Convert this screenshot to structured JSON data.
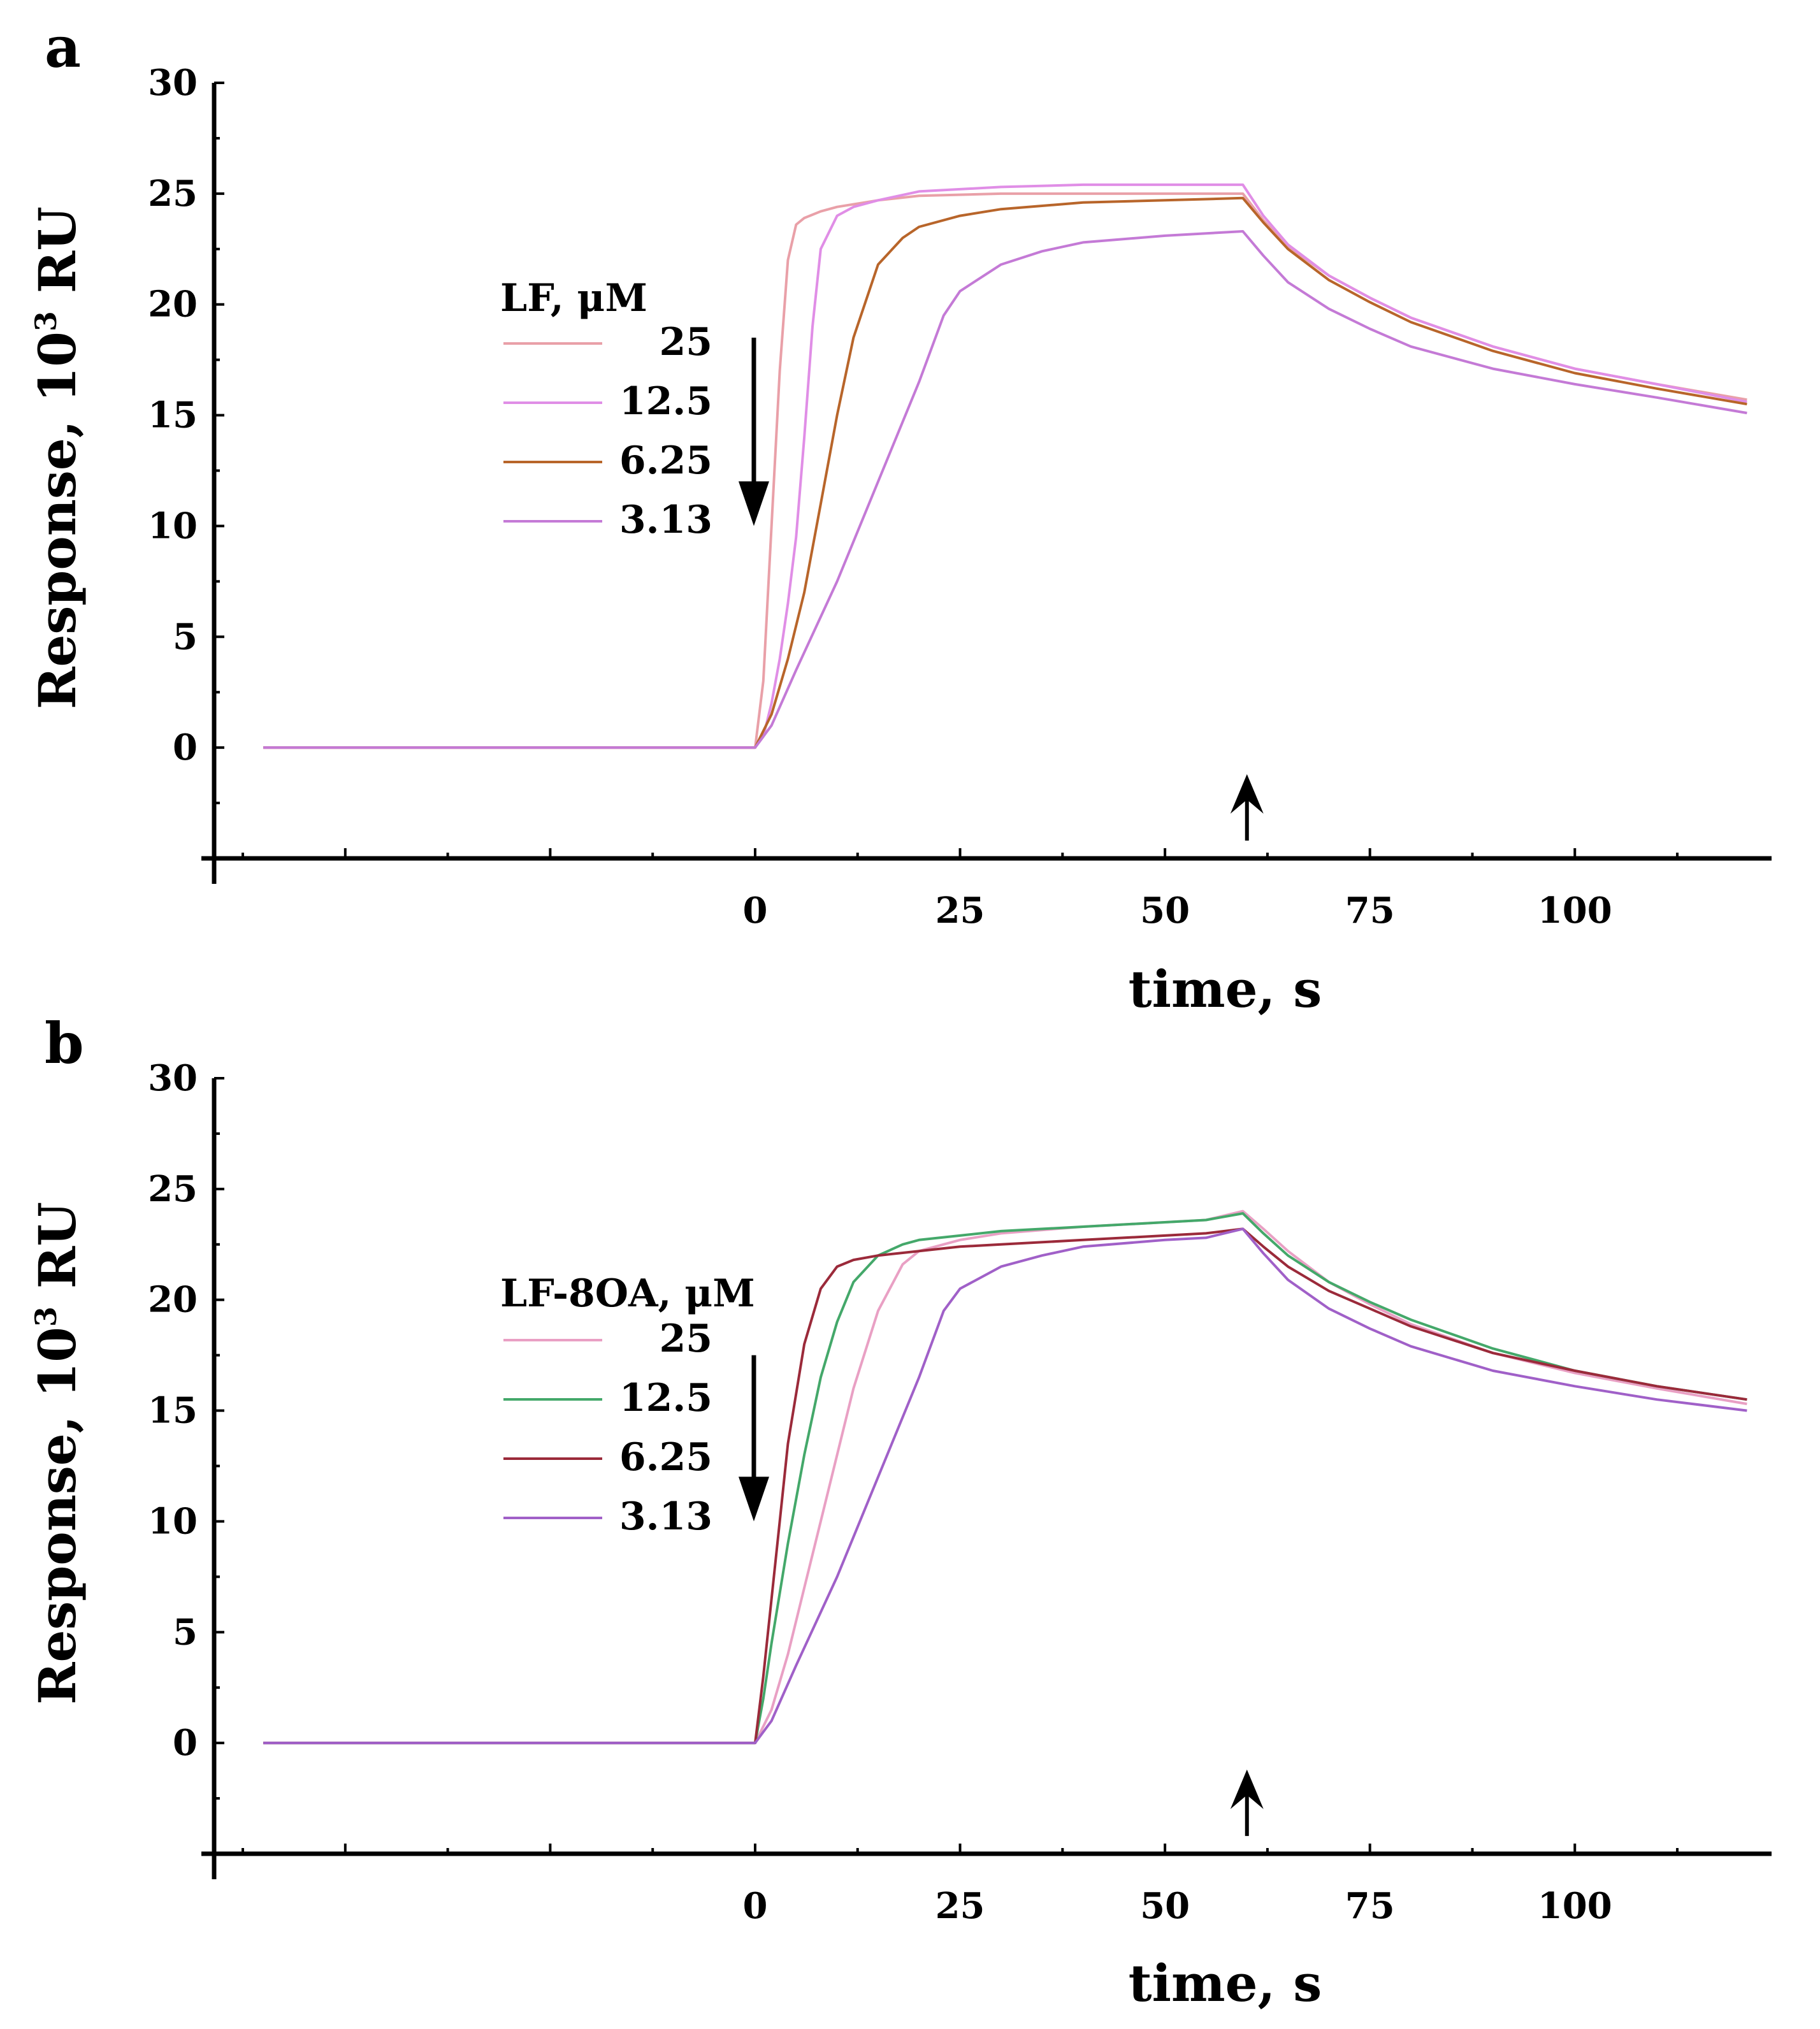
{
  "chart_data": [
    {
      "type": "line",
      "panel_label": "a",
      "xlabel": "time, s",
      "ylabel": "Response, 10",
      "ylabel_superscript": "3",
      "ylabel_suffix": " RU",
      "xlim": [
        -66,
        124
      ],
      "ylim": [
        -5,
        30
      ],
      "xticks": [
        "0",
        "25",
        "50",
        "75",
        "100"
      ],
      "xtick_values": [
        0,
        25,
        50,
        75,
        100
      ],
      "yticks": [
        "0",
        "5",
        "10",
        "15",
        "20",
        "25",
        "30"
      ],
      "ytick_values": [
        0,
        5,
        10,
        15,
        20,
        25,
        30
      ],
      "legend_title": "LF, μM",
      "legend_position": "left-center",
      "annotations": [
        {
          "type": "arrow-down",
          "x": 0,
          "y_from": 18.5,
          "y_to": 10,
          "meaning": "injection start"
        },
        {
          "type": "arrow-up",
          "x": 60,
          "y_from": -4.2,
          "y_to": -1.2,
          "meaning": "injection end"
        }
      ],
      "series": [
        {
          "name": "25",
          "color": "#e9a0a8",
          "x": [
            -60,
            0,
            1,
            2,
            3,
            4,
            5,
            6,
            8,
            10,
            15,
            20,
            30,
            40,
            50,
            59.5,
            62,
            65,
            70,
            75,
            80,
            90,
            100,
            110,
            121
          ],
          "y": [
            0,
            0,
            3,
            10,
            17,
            22,
            23.6,
            23.9,
            24.2,
            24.4,
            24.7,
            24.9,
            25.0,
            25.0,
            25.0,
            25.0,
            23.8,
            22.6,
            21.3,
            20.3,
            19.4,
            18.1,
            17.1,
            16.4,
            15.7
          ]
        },
        {
          "name": "12.5",
          "color": "#e08ee6",
          "x": [
            -60,
            0,
            1,
            2,
            3,
            4,
            5,
            6,
            7,
            8,
            10,
            12,
            15,
            20,
            30,
            40,
            50,
            59.5,
            62,
            65,
            70,
            75,
            80,
            90,
            100,
            110,
            121
          ],
          "y": [
            0,
            0,
            0.5,
            2,
            4,
            6.5,
            9.5,
            14,
            19,
            22.5,
            24.0,
            24.4,
            24.7,
            25.1,
            25.3,
            25.4,
            25.4,
            25.4,
            24.0,
            22.7,
            21.3,
            20.3,
            19.4,
            18.1,
            17.1,
            16.4,
            15.6
          ]
        },
        {
          "name": "6.25",
          "color": "#b8652a",
          "x": [
            -60,
            0,
            2,
            4,
            6,
            8,
            10,
            12,
            15,
            18,
            20,
            25,
            30,
            40,
            50,
            59.5,
            62,
            65,
            70,
            75,
            80,
            90,
            100,
            110,
            121
          ],
          "y": [
            0,
            0,
            1.5,
            4,
            7,
            11,
            15,
            18.5,
            21.8,
            23.0,
            23.5,
            24.0,
            24.3,
            24.6,
            24.7,
            24.8,
            23.7,
            22.5,
            21.1,
            20.1,
            19.2,
            17.9,
            16.9,
            16.2,
            15.5
          ]
        },
        {
          "name": "3.13",
          "color": "#c47ad6",
          "x": [
            -60,
            0,
            2,
            5,
            10,
            15,
            20,
            23,
            25,
            30,
            35,
            40,
            50,
            59.5,
            62,
            65,
            70,
            75,
            80,
            90,
            100,
            110,
            121
          ],
          "y": [
            0,
            0,
            1,
            3.5,
            7.5,
            12,
            16.5,
            19.5,
            20.6,
            21.8,
            22.4,
            22.8,
            23.1,
            23.3,
            22.2,
            21.0,
            19.8,
            18.9,
            18.1,
            17.1,
            16.4,
            15.8,
            15.1
          ]
        }
      ]
    },
    {
      "type": "line",
      "panel_label": "b",
      "xlabel": "time, s",
      "ylabel": "Response, 10",
      "ylabel_superscript": "3",
      "ylabel_suffix": " RU",
      "xlim": [
        -66,
        124
      ],
      "ylim": [
        -5,
        30
      ],
      "xticks": [
        "0",
        "25",
        "50",
        "75",
        "100"
      ],
      "xtick_values": [
        0,
        25,
        50,
        75,
        100
      ],
      "yticks": [
        "0",
        "5",
        "10",
        "15",
        "20",
        "25",
        "30"
      ],
      "ytick_values": [
        0,
        5,
        10,
        15,
        20,
        25,
        30
      ],
      "legend_title": "LF-8OA, μM",
      "legend_position": "left-center",
      "annotations": [
        {
          "type": "arrow-down",
          "x": 0,
          "y_from": 17.5,
          "y_to": 10,
          "meaning": "injection start"
        },
        {
          "type": "arrow-up",
          "x": 60,
          "y_from": -4.2,
          "y_to": -1.2,
          "meaning": "injection end"
        }
      ],
      "series": [
        {
          "name": "25",
          "color": "#e9a0c4",
          "x": [
            -60,
            0,
            2,
            4,
            6,
            8,
            10,
            12,
            15,
            18,
            20,
            25,
            30,
            40,
            50,
            55,
            59.5,
            62,
            65,
            70,
            75,
            80,
            90,
            100,
            110,
            121
          ],
          "y": [
            0,
            0,
            1.5,
            4,
            7,
            10,
            13,
            16,
            19.5,
            21.6,
            22.2,
            22.7,
            23.0,
            23.3,
            23.5,
            23.6,
            24.0,
            23.2,
            22.2,
            20.8,
            19.8,
            18.9,
            17.6,
            16.7,
            16.0,
            15.3
          ]
        },
        {
          "name": "12.5",
          "color": "#44a86a",
          "x": [
            -60,
            0,
            1,
            2,
            4,
            6,
            8,
            10,
            12,
            15,
            18,
            20,
            25,
            30,
            40,
            50,
            55,
            59.5,
            62,
            65,
            70,
            75,
            80,
            90,
            100,
            110,
            121
          ],
          "y": [
            0,
            0,
            2,
            4.5,
            9,
            13,
            16.5,
            19,
            20.8,
            22.0,
            22.5,
            22.7,
            22.9,
            23.1,
            23.3,
            23.5,
            23.6,
            23.9,
            23.0,
            22.0,
            20.8,
            19.9,
            19.1,
            17.8,
            16.8,
            16.1,
            15.5
          ]
        },
        {
          "name": "6.25",
          "color": "#9b2a3a",
          "x": [
            -60,
            0,
            1,
            2,
            3,
            4,
            6,
            8,
            10,
            12,
            15,
            20,
            25,
            30,
            40,
            50,
            55,
            59.5,
            62,
            65,
            70,
            75,
            80,
            90,
            100,
            110,
            121
          ],
          "y": [
            0,
            0,
            3,
            6.5,
            10,
            13.5,
            18,
            20.5,
            21.5,
            21.8,
            22.0,
            22.2,
            22.4,
            22.5,
            22.7,
            22.9,
            23.0,
            23.2,
            22.4,
            21.5,
            20.4,
            19.6,
            18.8,
            17.6,
            16.8,
            16.1,
            15.5
          ]
        },
        {
          "name": "3.13",
          "color": "#a060c8",
          "x": [
            -60,
            0,
            2,
            5,
            10,
            15,
            20,
            23,
            25,
            30,
            35,
            40,
            50,
            55,
            59.5,
            62,
            65,
            70,
            75,
            80,
            90,
            100,
            110,
            121
          ],
          "y": [
            0,
            0,
            1,
            3.5,
            7.5,
            12,
            16.5,
            19.5,
            20.5,
            21.5,
            22.0,
            22.4,
            22.7,
            22.8,
            23.2,
            22.1,
            20.9,
            19.6,
            18.7,
            17.9,
            16.8,
            16.1,
            15.5,
            15.0
          ]
        }
      ]
    }
  ]
}
